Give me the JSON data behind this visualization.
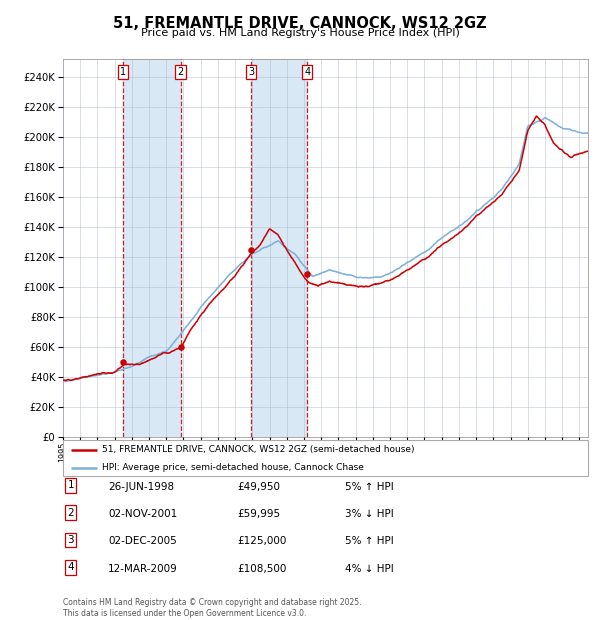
{
  "title": "51, FREMANTLE DRIVE, CANNOCK, WS12 2GZ",
  "subtitle": "Price paid vs. HM Land Registry's House Price Index (HPI)",
  "legend_line1": "51, FREMANTLE DRIVE, CANNOCK, WS12 2GZ (semi-detached house)",
  "legend_line2": "HPI: Average price, semi-detached house, Cannock Chase",
  "footer_line1": "Contains HM Land Registry data © Crown copyright and database right 2025.",
  "footer_line2": "This data is licensed under the Open Government Licence v3.0.",
  "transactions": [
    {
      "num": 1,
      "date": "26-JUN-1998",
      "price": "£49,950",
      "pct": "5%",
      "dir": "↑",
      "year": 1998.49,
      "price_val": 49950
    },
    {
      "num": 2,
      "date": "02-NOV-2001",
      "price": "£59,995",
      "pct": "3%",
      "dir": "↓",
      "year": 2001.84,
      "price_val": 59995
    },
    {
      "num": 3,
      "date": "02-DEC-2005",
      "price": "£125,000",
      "pct": "5%",
      "dir": "↑",
      "year": 2005.92,
      "price_val": 125000
    },
    {
      "num": 4,
      "date": "12-MAR-2009",
      "price": "£108,500",
      "pct": "4%",
      "dir": "↓",
      "year": 2009.19,
      "price_val": 108500
    }
  ],
  "sale_years": [
    1998.49,
    2001.84,
    2005.92,
    2009.19
  ],
  "sale_prices": [
    49950,
    59995,
    125000,
    108500
  ],
  "ylim": [
    0,
    252000
  ],
  "yticks": [
    0,
    20000,
    40000,
    60000,
    80000,
    100000,
    120000,
    140000,
    160000,
    180000,
    200000,
    220000,
    240000
  ],
  "hpi_color": "#7ab0dc",
  "price_color": "#cc0000",
  "shade_color": "#d8e8f5",
  "grid_color": "#aab4cc",
  "bg_color": "#ffffff",
  "dashed_color": "#cc0000",
  "xmin": 1995,
  "xmax": 2025.5
}
